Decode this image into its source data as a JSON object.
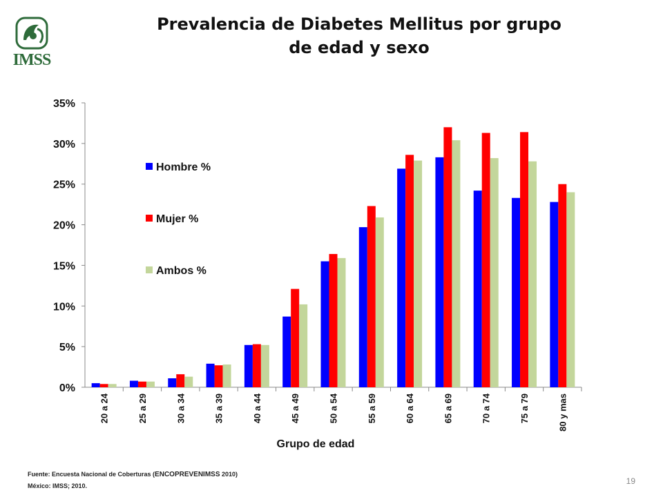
{
  "logo": {
    "text": "IMSS",
    "color": "#2e6b3a"
  },
  "slide": {
    "title_line1": "Prevalencia de Diabetes Mellitus por grupo",
    "title_line2": "de edad y sexo",
    "footer_line1_prefix": "Fuente: Encuesta Nacional de Coberturas (",
    "footer_line1_strong": "ENCOPREVENIMSS",
    "footer_line1_suffix": " 2010)",
    "footer_line2": "México: IMSS; 2010.",
    "page_number": "19"
  },
  "chart_data": {
    "type": "bar",
    "title": "",
    "xlabel": "Grupo de edad",
    "ylabel": "",
    "ylim": [
      0,
      35
    ],
    "yticks": [
      "0%",
      "5%",
      "10%",
      "15%",
      "20%",
      "25%",
      "30%",
      "35%"
    ],
    "categories": [
      "20 a 24",
      "25 a 29",
      "30 a 34",
      "35 a 39",
      "40 a 44",
      "45 a 49",
      "50 a 54",
      "55 a 59",
      "60 a 64",
      "65 a 69",
      "70 a 74",
      "75 a 79",
      "80 y mas"
    ],
    "series": [
      {
        "name": "Hombre %",
        "color": "#0000ff",
        "values": [
          0.5,
          0.8,
          1.1,
          2.9,
          5.2,
          8.7,
          15.5,
          19.7,
          26.9,
          28.3,
          24.2,
          23.3,
          22.8
        ]
      },
      {
        "name": "Mujer %",
        "color": "#ff0000",
        "values": [
          0.4,
          0.7,
          1.6,
          2.7,
          5.3,
          12.1,
          16.4,
          22.3,
          28.6,
          32.0,
          31.3,
          31.4,
          25.0
        ]
      },
      {
        "name": "Ambos %",
        "color": "#c3d69b",
        "values": [
          0.4,
          0.7,
          1.3,
          2.8,
          5.2,
          10.2,
          15.9,
          20.9,
          27.9,
          30.4,
          28.2,
          27.8,
          24.0
        ]
      }
    ],
    "legend_position": "upper-left",
    "grid": false
  }
}
